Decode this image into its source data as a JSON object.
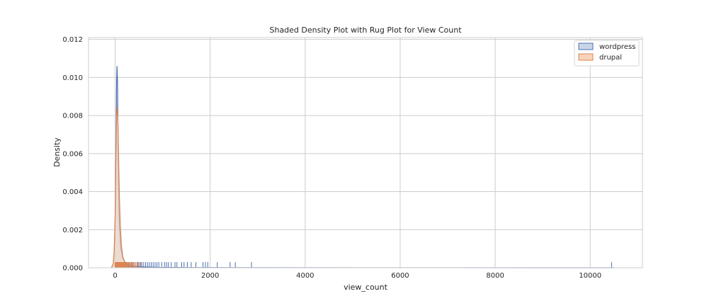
{
  "chart_data": {
    "type": "area",
    "title": "Shaded Density Plot with Rug Plot for View Count",
    "xlabel": "view_count",
    "ylabel": "Density",
    "xlim": [
      -560,
      11100
    ],
    "ylim": [
      0,
      0.0121
    ],
    "x_ticks": [
      0,
      2000,
      4000,
      6000,
      8000,
      10000
    ],
    "y_ticks": [
      0.0,
      0.002,
      0.004,
      0.006,
      0.008,
      0.01,
      0.012
    ],
    "x_tick_labels": [
      "0",
      "2000",
      "4000",
      "6000",
      "8000",
      "10000"
    ],
    "y_tick_labels": [
      "0.000",
      "0.002",
      "0.004",
      "0.006",
      "0.008",
      "0.010",
      "0.012"
    ],
    "grid": true,
    "legend_position": "top-right",
    "series": [
      {
        "name": "wordpress",
        "line_color": "#4c72b0",
        "fill_color": "#c9d5e6",
        "density": {
          "x": [
            -80,
            -40,
            -20,
            0,
            15,
            30,
            40,
            50,
            60,
            70,
            90,
            120,
            160,
            220,
            300,
            400,
            600,
            900,
            1500,
            3000,
            10500
          ],
          "y": [
            0,
            0.0002,
            0.0008,
            0.0025,
            0.006,
            0.0098,
            0.0106,
            0.0098,
            0.007,
            0.0045,
            0.0022,
            0.001,
            0.0005,
            0.00025,
            0.00012,
            7e-05,
            4e-05,
            2e-05,
            1e-05,
            4e-06,
            0
          ]
        },
        "rug": [
          10,
          20,
          30,
          40,
          50,
          60,
          70,
          80,
          100,
          120,
          140,
          160,
          180,
          200,
          220,
          250,
          280,
          300,
          320,
          350,
          380,
          400,
          430,
          460,
          480,
          500,
          530,
          560,
          600,
          640,
          680,
          720,
          760,
          800,
          840,
          880,
          920,
          980,
          1040,
          1080,
          1120,
          1180,
          1260,
          1300,
          1400,
          1450,
          1520,
          1600,
          1700,
          1850,
          1900,
          1950,
          2150,
          2420,
          2530,
          2870,
          10450
        ]
      },
      {
        "name": "drupal",
        "line_color": "#dd8452",
        "fill_color": "#f8d3bb",
        "density": {
          "x": [
            -80,
            -40,
            -20,
            0,
            15,
            30,
            45,
            60,
            75,
            90,
            110,
            130,
            160,
            200,
            250,
            300,
            400,
            600
          ],
          "y": [
            0,
            0.0002,
            0.0009,
            0.0028,
            0.0058,
            0.008,
            0.0085,
            0.0075,
            0.0055,
            0.0037,
            0.0022,
            0.0012,
            0.0006,
            0.0003,
            0.00012,
            5e-05,
            1e-05,
            0
          ]
        },
        "rug": [
          0,
          5,
          10,
          15,
          20,
          25,
          30,
          35,
          40,
          45,
          50,
          55,
          60,
          65,
          70,
          75,
          80,
          85,
          90,
          95,
          100,
          110,
          120,
          130,
          140,
          150,
          160,
          170,
          180,
          190,
          200,
          215,
          230,
          245,
          260,
          280,
          300,
          320,
          340,
          360,
          380,
          400,
          430,
          460,
          500,
          540
        ]
      }
    ]
  }
}
